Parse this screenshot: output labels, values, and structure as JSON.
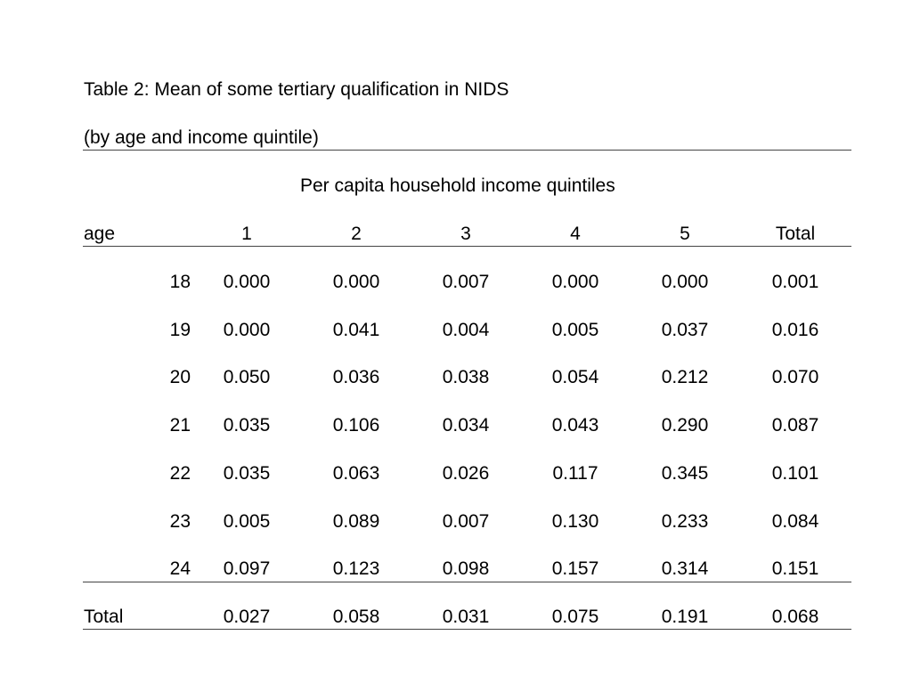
{
  "caption": {
    "title": "Table 2: Mean of some tertiary qualification in NIDS",
    "subtitle": "(by age and income quintile)"
  },
  "table": {
    "spanner": "Per capita household income quintiles",
    "row_header_label": "age",
    "columns": [
      "1",
      "2",
      "3",
      "4",
      "5",
      "Total"
    ],
    "rows": [
      {
        "age": "18",
        "values": [
          "0.000",
          "0.000",
          "0.007",
          "0.000",
          "0.000",
          "0.001"
        ]
      },
      {
        "age": "19",
        "values": [
          "0.000",
          "0.041",
          "0.004",
          "0.005",
          "0.037",
          "0.016"
        ]
      },
      {
        "age": "20",
        "values": [
          "0.050",
          "0.036",
          "0.038",
          "0.054",
          "0.212",
          "0.070"
        ]
      },
      {
        "age": "21",
        "values": [
          "0.035",
          "0.106",
          "0.034",
          "0.043",
          "0.290",
          "0.087"
        ]
      },
      {
        "age": "22",
        "values": [
          "0.035",
          "0.063",
          "0.026",
          "0.117",
          "0.345",
          "0.101"
        ]
      },
      {
        "age": "23",
        "values": [
          "0.005",
          "0.089",
          "0.007",
          "0.130",
          "0.233",
          "0.084"
        ]
      },
      {
        "age": "24",
        "values": [
          "0.097",
          "0.123",
          "0.098",
          "0.157",
          "0.314",
          "0.151"
        ]
      }
    ],
    "total_row": {
      "label": "Total",
      "values": [
        "0.027",
        "0.058",
        "0.031",
        "0.075",
        "0.191",
        "0.068"
      ]
    }
  }
}
